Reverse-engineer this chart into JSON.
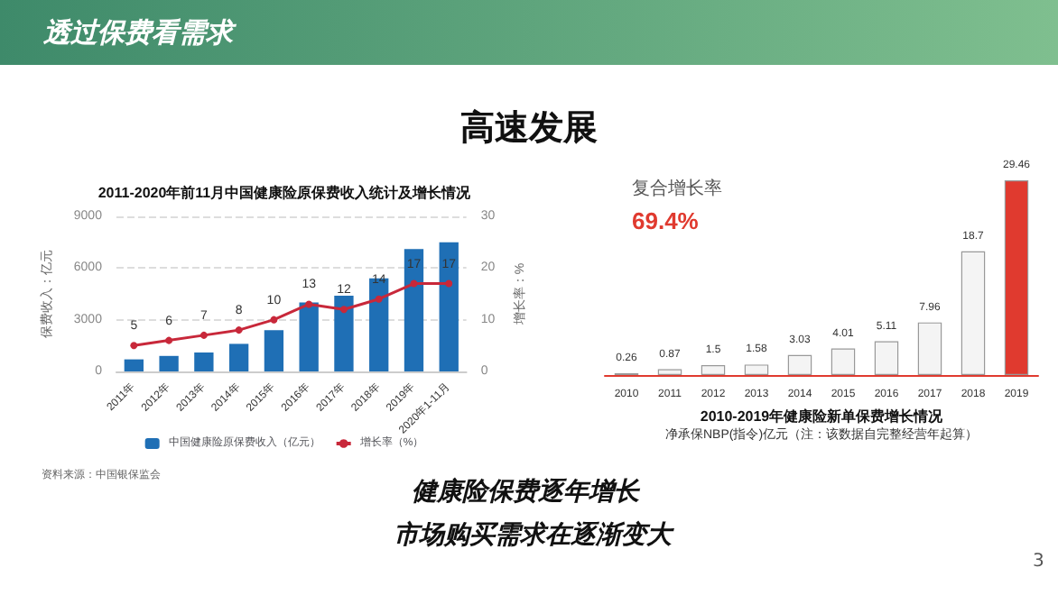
{
  "chart_data": [
    {
      "type": "bar",
      "title": "2011-2020年前11月中国健康险原保费收入统计及增长情况",
      "ylabel": "保费收入：亿元",
      "y2label": "增长率：%",
      "categories": [
        "2011年",
        "2012年",
        "2013年",
        "2014年",
        "2015年",
        "2016年",
        "2017年",
        "2018年",
        "2019年",
        "2020年1-11月"
      ],
      "series": [
        {
          "name": "中国健康险原保费收入（亿元）",
          "color": "#1f6fb5",
          "type": "bar",
          "values": [
            700,
            900,
            1100,
            1600,
            2400,
            4000,
            4400,
            5400,
            7100,
            7500
          ]
        },
        {
          "name": "增长率（%）",
          "color": "#c8283a",
          "type": "line",
          "axis": "y2",
          "values": [
            5,
            6,
            7,
            8,
            10,
            13,
            12,
            14,
            17,
            17
          ],
          "value_labels": [
            "5",
            "6",
            "7",
            "8",
            "10",
            "13",
            "12",
            "14",
            "17",
            "17"
          ]
        }
      ],
      "ylim": [
        0,
        9000
      ],
      "yticks": [
        0,
        3000,
        6000,
        9000
      ],
      "y2lim": [
        0,
        30
      ],
      "y2ticks": [
        0,
        10,
        20,
        30
      ],
      "grid": "y",
      "legend": "bottom",
      "marker": "circle",
      "annotations": [
        "资料来源：中国银保监会"
      ]
    },
    {
      "type": "bar",
      "title": "2010-2019年健康险新单保费增长情况",
      "subtitle": "净承保NBP(指令)亿元（注：该数据自完整经营年起算）",
      "categories": [
        "2010",
        "2011",
        "2012",
        "2013",
        "2014",
        "2015",
        "2016",
        "2017",
        "2018",
        "2019"
      ],
      "values": [
        0.26,
        0.87,
        1.5,
        1.58,
        3.03,
        4.01,
        5.11,
        7.96,
        18.7,
        29.46
      ],
      "colors": [
        "#f4f4f4",
        "#f4f4f4",
        "#f4f4f4",
        "#f4f4f4",
        "#f4f4f4",
        "#f4f4f4",
        "#f4f4f4",
        "#f4f4f4",
        "#f4f4f4",
        "#e03a2f"
      ],
      "data_labels": true,
      "tick_labels": "x",
      "annotations": [
        "复合增长率",
        "69.4%"
      ]
    },
    {
      "type": "other",
      "title": "透过保费看需求",
      "subtitle": "高速发展",
      "annotations": [
        "健康险保费逐年增长",
        "市场购买需求在逐渐变大",
        "3"
      ]
    }
  ]
}
